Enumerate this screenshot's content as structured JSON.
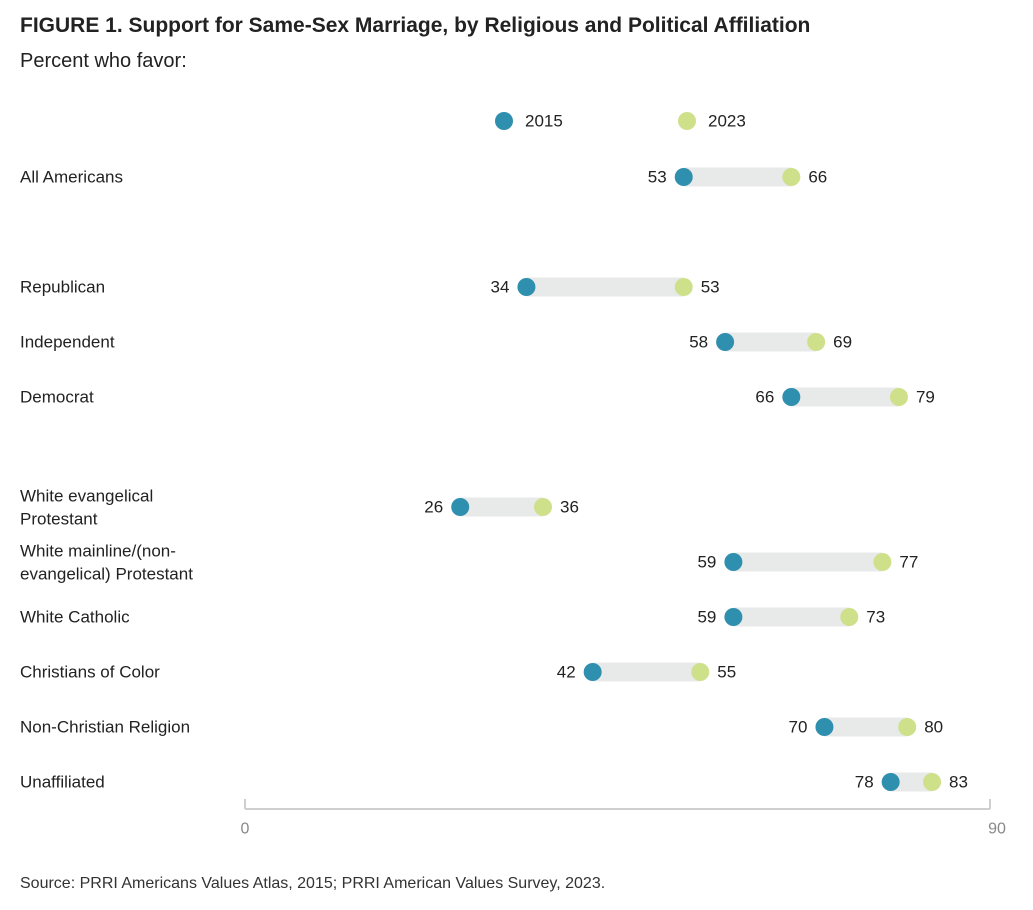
{
  "title": "FIGURE 1.  Support for Same-Sex Marriage, by Religious and Political Affiliation",
  "subtitle": "Percent who favor:",
  "source": "Source: PRRI Americans Values Atlas, 2015; PRRI American Values Survey, 2023.",
  "colors": {
    "2015": "#2f8fae",
    "2023": "#cfe08b",
    "bar": "#e8e9e9",
    "axis": "#cfcfcf",
    "tick_label": "#888888"
  },
  "chart_data": {
    "type": "dumbbell",
    "series": [
      {
        "name": "2015"
      },
      {
        "name": "2023"
      }
    ],
    "xlim": [
      0,
      90
    ],
    "x_ticks": [
      "0",
      "90"
    ],
    "groups": [
      {
        "rows": [
          {
            "label": [
              "All Americans"
            ],
            "v2015": 53,
            "v2023": 66
          }
        ]
      },
      {
        "rows": [
          {
            "label": [
              "Republican"
            ],
            "v2015": 34,
            "v2023": 53
          },
          {
            "label": [
              "Independent"
            ],
            "v2015": 58,
            "v2023": 69
          },
          {
            "label": [
              "Democrat"
            ],
            "v2015": 66,
            "v2023": 79
          }
        ]
      },
      {
        "rows": [
          {
            "label": [
              "White evangelical",
              "Protestant"
            ],
            "v2015": 26,
            "v2023": 36
          },
          {
            "label": [
              "White mainline/(non-",
              "evangelical) Protestant"
            ],
            "v2015": 59,
            "v2023": 77
          },
          {
            "label": [
              "White Catholic"
            ],
            "v2015": 59,
            "v2023": 73
          },
          {
            "label": [
              "Christians of Color"
            ],
            "v2015": 42,
            "v2023": 55
          },
          {
            "label": [
              "Non-Christian Religion"
            ],
            "v2015": 70,
            "v2023": 80
          },
          {
            "label": [
              "Unaffiliated"
            ],
            "v2015": 78,
            "v2023": 83
          }
        ]
      }
    ]
  }
}
